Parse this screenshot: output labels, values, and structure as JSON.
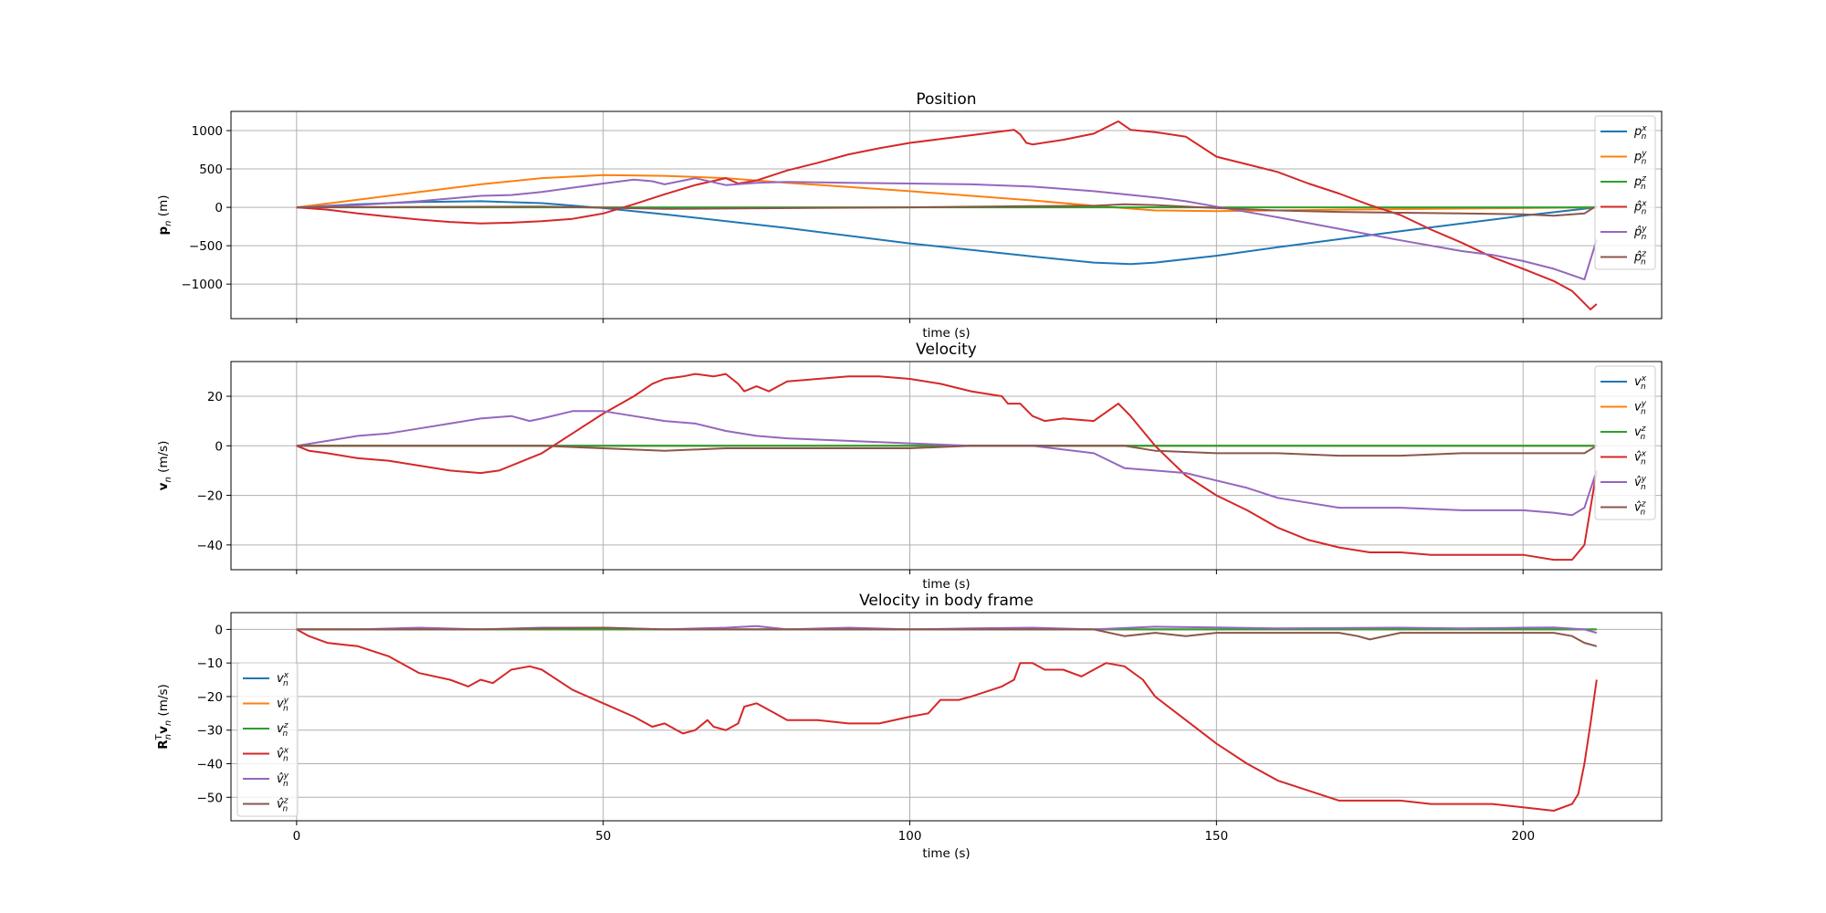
{
  "colors": {
    "c0": "#1f77b4",
    "c1": "#ff7f0e",
    "c2": "#2ca02c",
    "c3": "#d62728",
    "c4": "#9467bd",
    "c5": "#8c564b",
    "grid": "#b0b0b0"
  },
  "chart_data": [
    {
      "type": "line",
      "title": "Position",
      "xlabel": "time (s)",
      "ylabel": "p_n (m)",
      "xlim": [
        -10.7,
        222.6
      ],
      "ylim": [
        -1450,
        1250
      ],
      "x_ticks": [
        0,
        50,
        100,
        150,
        200
      ],
      "x_tick_labels": [
        "",
        "",
        "",
        "",
        ""
      ],
      "y_ticks": [
        1000,
        500,
        0,
        -500,
        -1000
      ],
      "y_tick_labels": [
        "1000",
        "500",
        "0",
        "−500",
        "−1000"
      ],
      "grid": true,
      "legend_position": "right",
      "series": [
        {
          "name": "p_n^x",
          "color": "#1f77b4",
          "x": [
            0,
            10,
            20,
            30,
            40,
            50,
            60,
            80,
            100,
            120,
            130,
            136,
            140,
            150,
            160,
            180,
            200,
            212
          ],
          "y": [
            0,
            40,
            70,
            80,
            55,
            -10,
            -90,
            -270,
            -470,
            -640,
            -720,
            -740,
            -720,
            -630,
            -520,
            -310,
            -110,
            0
          ]
        },
        {
          "name": "p_n^y",
          "color": "#ff7f0e",
          "x": [
            0,
            10,
            20,
            30,
            40,
            50,
            60,
            70,
            80,
            100,
            120,
            130,
            140,
            150,
            170,
            200,
            212
          ],
          "y": [
            0,
            100,
            200,
            300,
            380,
            420,
            410,
            380,
            320,
            210,
            90,
            20,
            -40,
            -50,
            -30,
            -10,
            0
          ]
        },
        {
          "name": "p_n^z",
          "color": "#2ca02c",
          "x": [
            0,
            212
          ],
          "y": [
            0,
            0
          ]
        },
        {
          "name": "p̂_n^x",
          "color": "#d62728",
          "x": [
            0,
            5,
            10,
            15,
            20,
            25,
            30,
            35,
            40,
            45,
            50,
            55,
            60,
            65,
            70,
            72,
            75,
            80,
            85,
            90,
            95,
            100,
            105,
            110,
            115,
            117,
            118,
            119,
            120,
            125,
            130,
            134,
            136,
            140,
            145,
            150,
            155,
            160,
            165,
            170,
            175,
            180,
            185,
            190,
            195,
            200,
            205,
            208,
            210,
            211,
            212
          ],
          "y": [
            0,
            -30,
            -80,
            -120,
            -160,
            -190,
            -210,
            -200,
            -180,
            -150,
            -80,
            40,
            170,
            290,
            380,
            310,
            350,
            480,
            580,
            690,
            770,
            840,
            890,
            940,
            990,
            1010,
            950,
            840,
            820,
            880,
            960,
            1120,
            1010,
            980,
            920,
            660,
            560,
            460,
            310,
            180,
            30,
            -100,
            -290,
            -460,
            -650,
            -800,
            -960,
            -1090,
            -1250,
            -1330,
            -1260
          ]
        },
        {
          "name": "p̂_n^y",
          "color": "#9467bd",
          "x": [
            0,
            10,
            20,
            30,
            35,
            40,
            50,
            55,
            58,
            60,
            65,
            70,
            75,
            80,
            90,
            100,
            110,
            120,
            130,
            140,
            145,
            150,
            160,
            170,
            180,
            190,
            195,
            200,
            205,
            210,
            212
          ],
          "y": [
            0,
            30,
            80,
            150,
            160,
            200,
            310,
            360,
            340,
            300,
            380,
            290,
            320,
            330,
            320,
            310,
            300,
            270,
            210,
            130,
            80,
            10,
            -130,
            -280,
            -430,
            -570,
            -620,
            -700,
            -800,
            -940,
            -420
          ]
        },
        {
          "name": "p̂_n^z",
          "color": "#8c564b",
          "x": [
            0,
            40,
            50,
            60,
            70,
            100,
            120,
            130,
            135,
            140,
            145,
            150,
            160,
            170,
            180,
            190,
            200,
            205,
            210,
            212
          ],
          "y": [
            0,
            10,
            -5,
            -20,
            -15,
            0,
            15,
            20,
            40,
            30,
            10,
            -10,
            -40,
            -60,
            -70,
            -80,
            -90,
            -110,
            -80,
            20
          ]
        }
      ]
    },
    {
      "type": "line",
      "title": "Velocity",
      "xlabel": "time (s)",
      "ylabel": "v_n (m/s)",
      "xlim": [
        -10.7,
        222.6
      ],
      "ylim": [
        -50,
        34
      ],
      "x_ticks": [
        0,
        50,
        100,
        150,
        200
      ],
      "x_tick_labels": [
        "",
        "",
        "",
        "",
        ""
      ],
      "y_ticks": [
        20,
        0,
        -20,
        -40
      ],
      "y_tick_labels": [
        "20",
        "0",
        "−20",
        "−40"
      ],
      "grid": true,
      "legend_position": "right",
      "series": [
        {
          "name": "v_n^x",
          "color": "#1f77b4",
          "x": [
            0,
            212
          ],
          "y": [
            0,
            0
          ]
        },
        {
          "name": "v_n^y",
          "color": "#ff7f0e",
          "x": [
            0,
            212
          ],
          "y": [
            0,
            0
          ]
        },
        {
          "name": "v_n^z",
          "color": "#2ca02c",
          "x": [
            0,
            212
          ],
          "y": [
            0,
            0
          ]
        },
        {
          "name": "v̂_n^x",
          "color": "#d62728",
          "x": [
            0,
            2,
            5,
            10,
            15,
            20,
            25,
            30,
            33,
            35,
            40,
            45,
            50,
            55,
            58,
            60,
            63,
            65,
            68,
            70,
            72,
            73,
            75,
            77,
            80,
            85,
            90,
            95,
            100,
            105,
            110,
            115,
            116,
            118,
            120,
            122,
            125,
            130,
            134,
            136,
            140,
            145,
            150,
            155,
            160,
            165,
            170,
            175,
            180,
            185,
            190,
            195,
            200,
            205,
            208,
            210,
            211,
            212
          ],
          "y": [
            0,
            -2,
            -3,
            -5,
            -6,
            -8,
            -10,
            -11,
            -10,
            -8,
            -3,
            5,
            13,
            20,
            25,
            27,
            28,
            29,
            28,
            29,
            25,
            22,
            24,
            22,
            26,
            27,
            28,
            28,
            27,
            25,
            22,
            20,
            17,
            17,
            12,
            10,
            11,
            10,
            17,
            12,
            0,
            -12,
            -20,
            -26,
            -33,
            -38,
            -41,
            -43,
            -43,
            -44,
            -44,
            -44,
            -44,
            -46,
            -46,
            -40,
            -25,
            -10
          ]
        },
        {
          "name": "v̂_n^y",
          "color": "#9467bd",
          "x": [
            0,
            5,
            10,
            15,
            20,
            25,
            30,
            35,
            38,
            40,
            45,
            50,
            55,
            60,
            65,
            70,
            75,
            80,
            90,
            100,
            110,
            120,
            130,
            135,
            140,
            145,
            150,
            155,
            160,
            165,
            170,
            175,
            180,
            190,
            200,
            205,
            208,
            210,
            212
          ],
          "y": [
            0,
            2,
            4,
            5,
            7,
            9,
            11,
            12,
            10,
            11,
            14,
            14,
            12,
            10,
            9,
            6,
            4,
            3,
            2,
            1,
            0,
            0,
            -3,
            -9,
            -10,
            -11,
            -14,
            -17,
            -21,
            -23,
            -25,
            -25,
            -25,
            -26,
            -26,
            -27,
            -28,
            -25,
            -10
          ]
        },
        {
          "name": "v̂_n^z",
          "color": "#8c564b",
          "x": [
            0,
            10,
            20,
            30,
            40,
            50,
            60,
            70,
            80,
            90,
            100,
            110,
            120,
            130,
            135,
            140,
            150,
            160,
            170,
            180,
            190,
            200,
            205,
            210,
            212
          ],
          "y": [
            0,
            0,
            0,
            0,
            0,
            -1,
            -2,
            -1,
            -1,
            -1,
            -1,
            0,
            0,
            0,
            0,
            -2,
            -3,
            -3,
            -4,
            -4,
            -3,
            -3,
            -3,
            -3,
            0
          ]
        }
      ]
    },
    {
      "type": "line",
      "title": "Velocity in body frame",
      "xlabel": "time (s)",
      "ylabel": "R_n^T v_n (m/s)",
      "xlim": [
        -10.7,
        222.6
      ],
      "ylim": [
        -57,
        5
      ],
      "x_ticks": [
        0,
        50,
        100,
        150,
        200
      ],
      "x_tick_labels": [
        "0",
        "50",
        "100",
        "150",
        "200"
      ],
      "y_ticks": [
        0,
        -10,
        -20,
        -30,
        -40,
        -50
      ],
      "y_tick_labels": [
        "0",
        "−10",
        "−20",
        "−30",
        "−40",
        "−50"
      ],
      "grid": true,
      "legend_position": "left",
      "series": [
        {
          "name": "v_n^x",
          "color": "#1f77b4",
          "x": [
            0,
            212
          ],
          "y": [
            0,
            0
          ]
        },
        {
          "name": "v_n^y",
          "color": "#ff7f0e",
          "x": [
            0,
            212
          ],
          "y": [
            0,
            0
          ]
        },
        {
          "name": "v_n^z",
          "color": "#2ca02c",
          "x": [
            0,
            212
          ],
          "y": [
            0,
            0
          ]
        },
        {
          "name": "v̂_n^x",
          "color": "#d62728",
          "x": [
            0,
            2,
            5,
            10,
            15,
            20,
            25,
            28,
            30,
            32,
            35,
            38,
            40,
            45,
            50,
            55,
            58,
            60,
            62,
            63,
            65,
            67,
            68,
            70,
            72,
            73,
            75,
            78,
            80,
            85,
            90,
            95,
            100,
            103,
            105,
            108,
            110,
            115,
            117,
            118,
            120,
            122,
            125,
            128,
            130,
            132,
            135,
            138,
            140,
            145,
            150,
            155,
            160,
            165,
            170,
            175,
            180,
            185,
            190,
            195,
            200,
            205,
            208,
            209,
            210,
            211,
            212
          ],
          "y": [
            0,
            -2,
            -4,
            -5,
            -8,
            -13,
            -15,
            -17,
            -15,
            -16,
            -12,
            -11,
            -12,
            -18,
            -22,
            -26,
            -29,
            -28,
            -30,
            -31,
            -30,
            -27,
            -29,
            -30,
            -28,
            -23,
            -22,
            -25,
            -27,
            -27,
            -28,
            -28,
            -26,
            -25,
            -21,
            -21,
            -20,
            -17,
            -15,
            -10,
            -10,
            -12,
            -12,
            -14,
            -12,
            -10,
            -11,
            -15,
            -20,
            -27,
            -34,
            -40,
            -45,
            -48,
            -51,
            -51,
            -51,
            -52,
            -52,
            -52,
            -53,
            -54,
            -52,
            -49,
            -40,
            -28,
            -15
          ]
        },
        {
          "name": "v̂_n^y",
          "color": "#9467bd",
          "x": [
            0,
            10,
            20,
            30,
            40,
            50,
            60,
            70,
            75,
            80,
            90,
            100,
            110,
            120,
            130,
            140,
            150,
            160,
            170,
            180,
            190,
            200,
            205,
            210,
            212
          ],
          "y": [
            0,
            0,
            0.5,
            0,
            0.5,
            0.5,
            0,
            0.5,
            1,
            0,
            0.5,
            0,
            0.3,
            0.5,
            0,
            0.8,
            0.6,
            0.3,
            0.4,
            0.5,
            0.3,
            0.5,
            0.6,
            0,
            -1
          ]
        },
        {
          "name": "v̂_n^z",
          "color": "#8c564b",
          "x": [
            0,
            10,
            20,
            30,
            40,
            50,
            60,
            70,
            80,
            90,
            100,
            110,
            120,
            130,
            135,
            140,
            145,
            150,
            160,
            170,
            173,
            175,
            180,
            190,
            200,
            205,
            208,
            210,
            212
          ],
          "y": [
            0,
            0,
            0,
            0,
            0.3,
            0.5,
            0,
            0,
            0,
            0,
            0,
            0,
            0,
            0,
            -2,
            -1,
            -2,
            -1,
            -1,
            -1,
            -2,
            -3,
            -1,
            -1,
            -1,
            -1,
            -2,
            -4,
            -5
          ]
        }
      ]
    }
  ]
}
